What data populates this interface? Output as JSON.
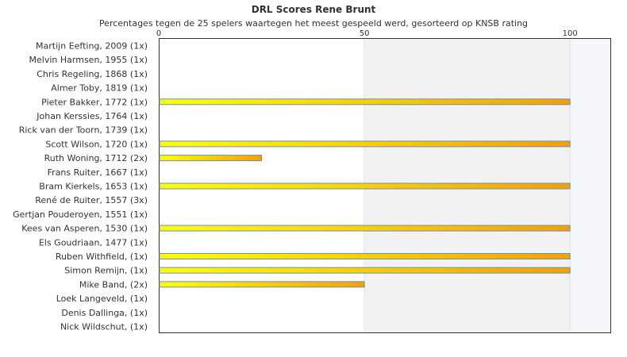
{
  "chart_data": {
    "type": "bar",
    "orientation": "horizontal",
    "title": "DRL Scores Rene Brunt",
    "subtitle": "Percentages tegen de 25 spelers waartegen het meest gespeeld werd, gesorteerd op KNSB rating",
    "xlim": [
      0,
      110
    ],
    "x_ticks": [
      0,
      50,
      100
    ],
    "categories": [
      "Martijn Eefting, 2009 (1x)",
      "Melvin Harmsen, 1955 (1x)",
      "Chris Regeling, 1868 (1x)",
      "Almer Toby, 1819 (1x)",
      "Pieter Bakker, 1772 (1x)",
      "Johan Kerssies, 1764 (1x)",
      "Rick van der Toorn, 1739 (1x)",
      "Scott Wilson, 1720 (1x)",
      "Ruth Woning, 1712 (2x)",
      "Frans Ruiter, 1667 (1x)",
      "Bram Kierkels, 1653 (1x)",
      "René de Ruiter, 1557 (3x)",
      "Gertjan Pouderoyen, 1551 (1x)",
      "Kees van Asperen, 1530 (1x)",
      "Els Goudriaan, 1477 (1x)",
      "Ruben Withfield,  (1x)",
      "Simon Remijn,  (1x)",
      "Mike Band,  (2x)",
      "Loek Langeveld,  (1x)",
      "Denis Dallinga,  (1x)",
      "Nick Wildschut,  (1x)"
    ],
    "values": [
      0,
      0,
      0,
      0,
      100,
      0,
      0,
      100,
      25,
      0,
      100,
      0,
      0,
      100,
      0,
      100,
      100,
      50,
      0,
      0,
      0
    ],
    "colors": {
      "bar_start": "#ffff00",
      "bar_end": "#f5a000",
      "bar_border": "#6a8fc0",
      "band_light": "#ffffff",
      "band_mid": "#f2f2f2",
      "band_far": "#f4f6fb",
      "frame": "#333333"
    }
  }
}
